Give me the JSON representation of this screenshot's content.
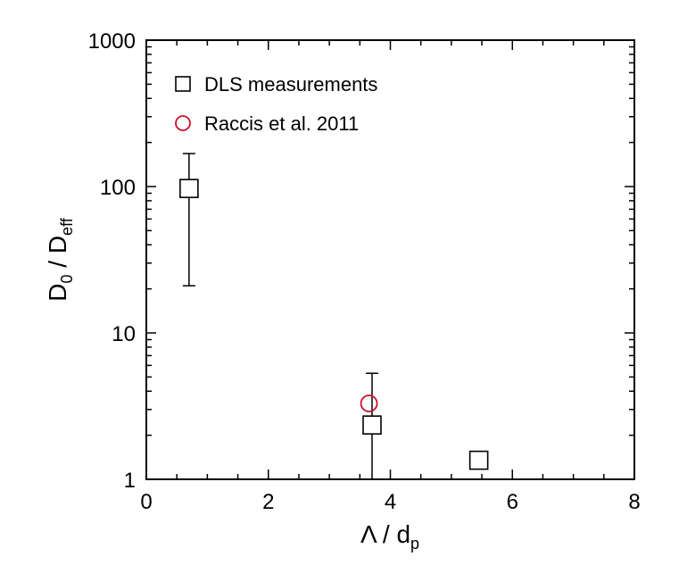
{
  "chart_data": {
    "type": "scatter",
    "xlabel": {
      "main": "Λ / d",
      "sub": "p"
    },
    "ylabel": {
      "main": "D",
      "sub1": "0",
      "mid": " / D",
      "sub2": "eff"
    },
    "xlim": [
      0,
      8
    ],
    "ylim": [
      1,
      1000
    ],
    "yscale": "log",
    "xticks": [
      0,
      2,
      4,
      6,
      8
    ],
    "yticks": [
      1,
      10,
      100,
      1000
    ],
    "xtick_labels": [
      "0",
      "2",
      "4",
      "6",
      "8"
    ],
    "ytick_labels": [
      "1",
      "10",
      "100",
      "1000"
    ],
    "legend_position": "top-left",
    "series": [
      {
        "name": "DLS measurements",
        "marker": "square",
        "color": "#000000",
        "points": [
          {
            "x": 0.7,
            "y": 97,
            "err_low": 21,
            "err_high": 168
          },
          {
            "x": 3.7,
            "y": 2.35,
            "err_low": 1.0,
            "err_high": 5.3
          },
          {
            "x": 5.45,
            "y": 1.35,
            "err_low": 1.18,
            "err_high": 1.55
          }
        ]
      },
      {
        "name": "Raccis et al. 2011",
        "marker": "circle",
        "color": "#c8102e",
        "points": [
          {
            "x": 3.65,
            "y": 3.3
          }
        ]
      }
    ]
  }
}
